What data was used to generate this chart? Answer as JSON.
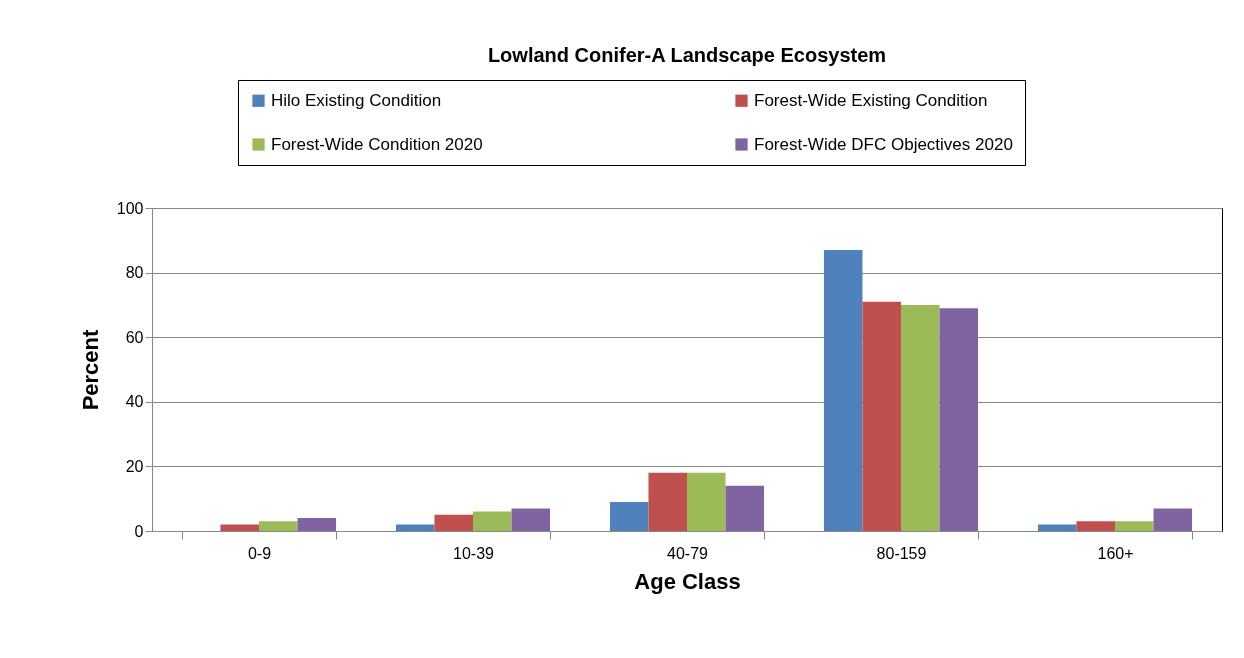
{
  "chart_data": {
    "type": "bar",
    "title": "Lowland Conifer-A Landscape Ecosystem",
    "xlabel": "Age Class",
    "ylabel": "Percent",
    "categories": [
      "0-9",
      "10-39",
      "40-79",
      "80-159",
      "160+"
    ],
    "series": [
      {
        "name": "Hilo Existing Condition",
        "color": "#4f81bd",
        "values": [
          0,
          2,
          9,
          87,
          2
        ]
      },
      {
        "name": "Forest-Wide Existing Condition",
        "color": "#c0504d",
        "values": [
          2,
          5,
          18,
          71,
          3
        ]
      },
      {
        "name": "Forest-Wide Condition 2020",
        "color": "#9bbb59",
        "values": [
          3,
          6,
          18,
          70,
          3
        ]
      },
      {
        "name": "Forest-Wide DFC Objectives 2020",
        "color": "#8064a2",
        "values": [
          4,
          7,
          14,
          69,
          7
        ]
      }
    ],
    "ylim": [
      0,
      100
    ],
    "yticks": [
      0,
      20,
      40,
      60,
      80,
      100
    ],
    "grid": "y",
    "legend": "top"
  }
}
